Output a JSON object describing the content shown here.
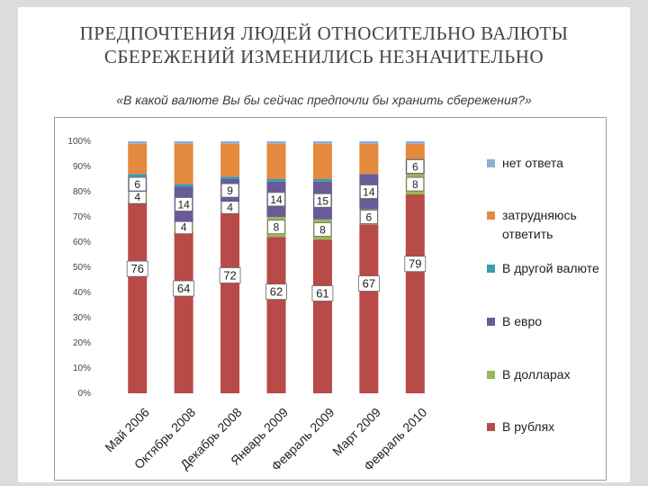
{
  "title_line1": "ПРЕДПОЧТЕНИЯ ЛЮДЕЙ ОТНОСИТЕЛЬНО ВАЛЮТЫ",
  "title_line2": "СБЕРЕЖЕНИЙ ИЗМЕНИЛИСЬ НЕЗНАЧИТЕЛЬНО",
  "subtitle": "«В какой валюте Вы бы сейчас предпочли бы хранить сбережения?»",
  "chart_data": {
    "type": "bar",
    "stacked": true,
    "percent_stacked": true,
    "categories": [
      "Май 2006",
      "Октябрь 2008",
      "Декабрь 2008",
      "Январь 2009",
      "Февраль 2009",
      "Март 2009",
      "Февраль 2010"
    ],
    "y_ticks": [
      "0%",
      "10%",
      "20%",
      "30%",
      "40%",
      "50%",
      "60%",
      "70%",
      "80%",
      "90%",
      "100%"
    ],
    "ylim": [
      0,
      100
    ],
    "grid": false,
    "legend_position": "right",
    "series": [
      {
        "name": "В рублях",
        "color": "#b84a48",
        "values": [
          76,
          64,
          72,
          62,
          61,
          67,
          79
        ],
        "labels": [
          "76",
          "64",
          "72",
          "62",
          "61",
          "67",
          "79"
        ]
      },
      {
        "name": "В долларах",
        "color": "#97b858",
        "values": [
          4,
          4,
          4,
          8,
          8,
          6,
          8
        ],
        "labels": [
          "4",
          "4",
          "4",
          "8",
          "8",
          "6",
          "8"
        ]
      },
      {
        "name": "В евро",
        "color": "#6a5a98",
        "values": [
          6,
          14,
          9,
          14,
          15,
          14,
          6
        ],
        "labels": [
          "6",
          "14",
          "9",
          "14",
          "15",
          "14",
          "6"
        ]
      },
      {
        "name": "В другой валюте",
        "color": "#3a9cb0",
        "values": [
          1,
          1,
          1,
          1,
          1,
          0,
          0
        ],
        "labels": []
      },
      {
        "name": "затрудняюсь ответить",
        "color": "#e38a3e",
        "values": [
          12,
          16,
          13,
          14,
          14,
          12,
          6
        ],
        "labels": []
      },
      {
        "name": "нет ответа",
        "color": "#8eaed4",
        "values": [
          1,
          1,
          1,
          1,
          1,
          1,
          1
        ],
        "labels": []
      }
    ]
  }
}
